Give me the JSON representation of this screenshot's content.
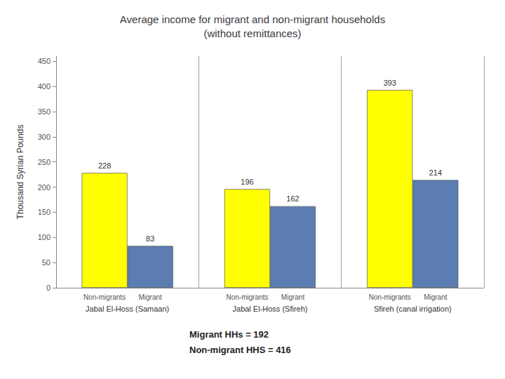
{
  "chart_data": {
    "type": "bar",
    "title": "Average income for migrant and non-migrant households\n(without remittances)",
    "y_label": "Thousand Syrian Pounds",
    "categories": [
      "Jabal El-Hoss (Samaan)",
      "Jabal El-Hoss (Sfireh)",
      "Sfireh (canal irrigation)"
    ],
    "series": [
      {
        "name": "Non-migrants",
        "color": "#FFFF00",
        "values": [
          228,
          196,
          393
        ]
      },
      {
        "name": "Migrant",
        "color": "#5B7DB1",
        "values": [
          83,
          162,
          214
        ]
      }
    ],
    "ylim": [
      0,
      460
    ],
    "yticks": [
      0,
      50,
      100,
      150,
      200,
      250,
      300,
      350,
      400,
      450
    ],
    "data_labels": true,
    "grid": false,
    "annotations": [
      "Migrant HHs = 192",
      "Non-migrant HHS = 416"
    ]
  }
}
